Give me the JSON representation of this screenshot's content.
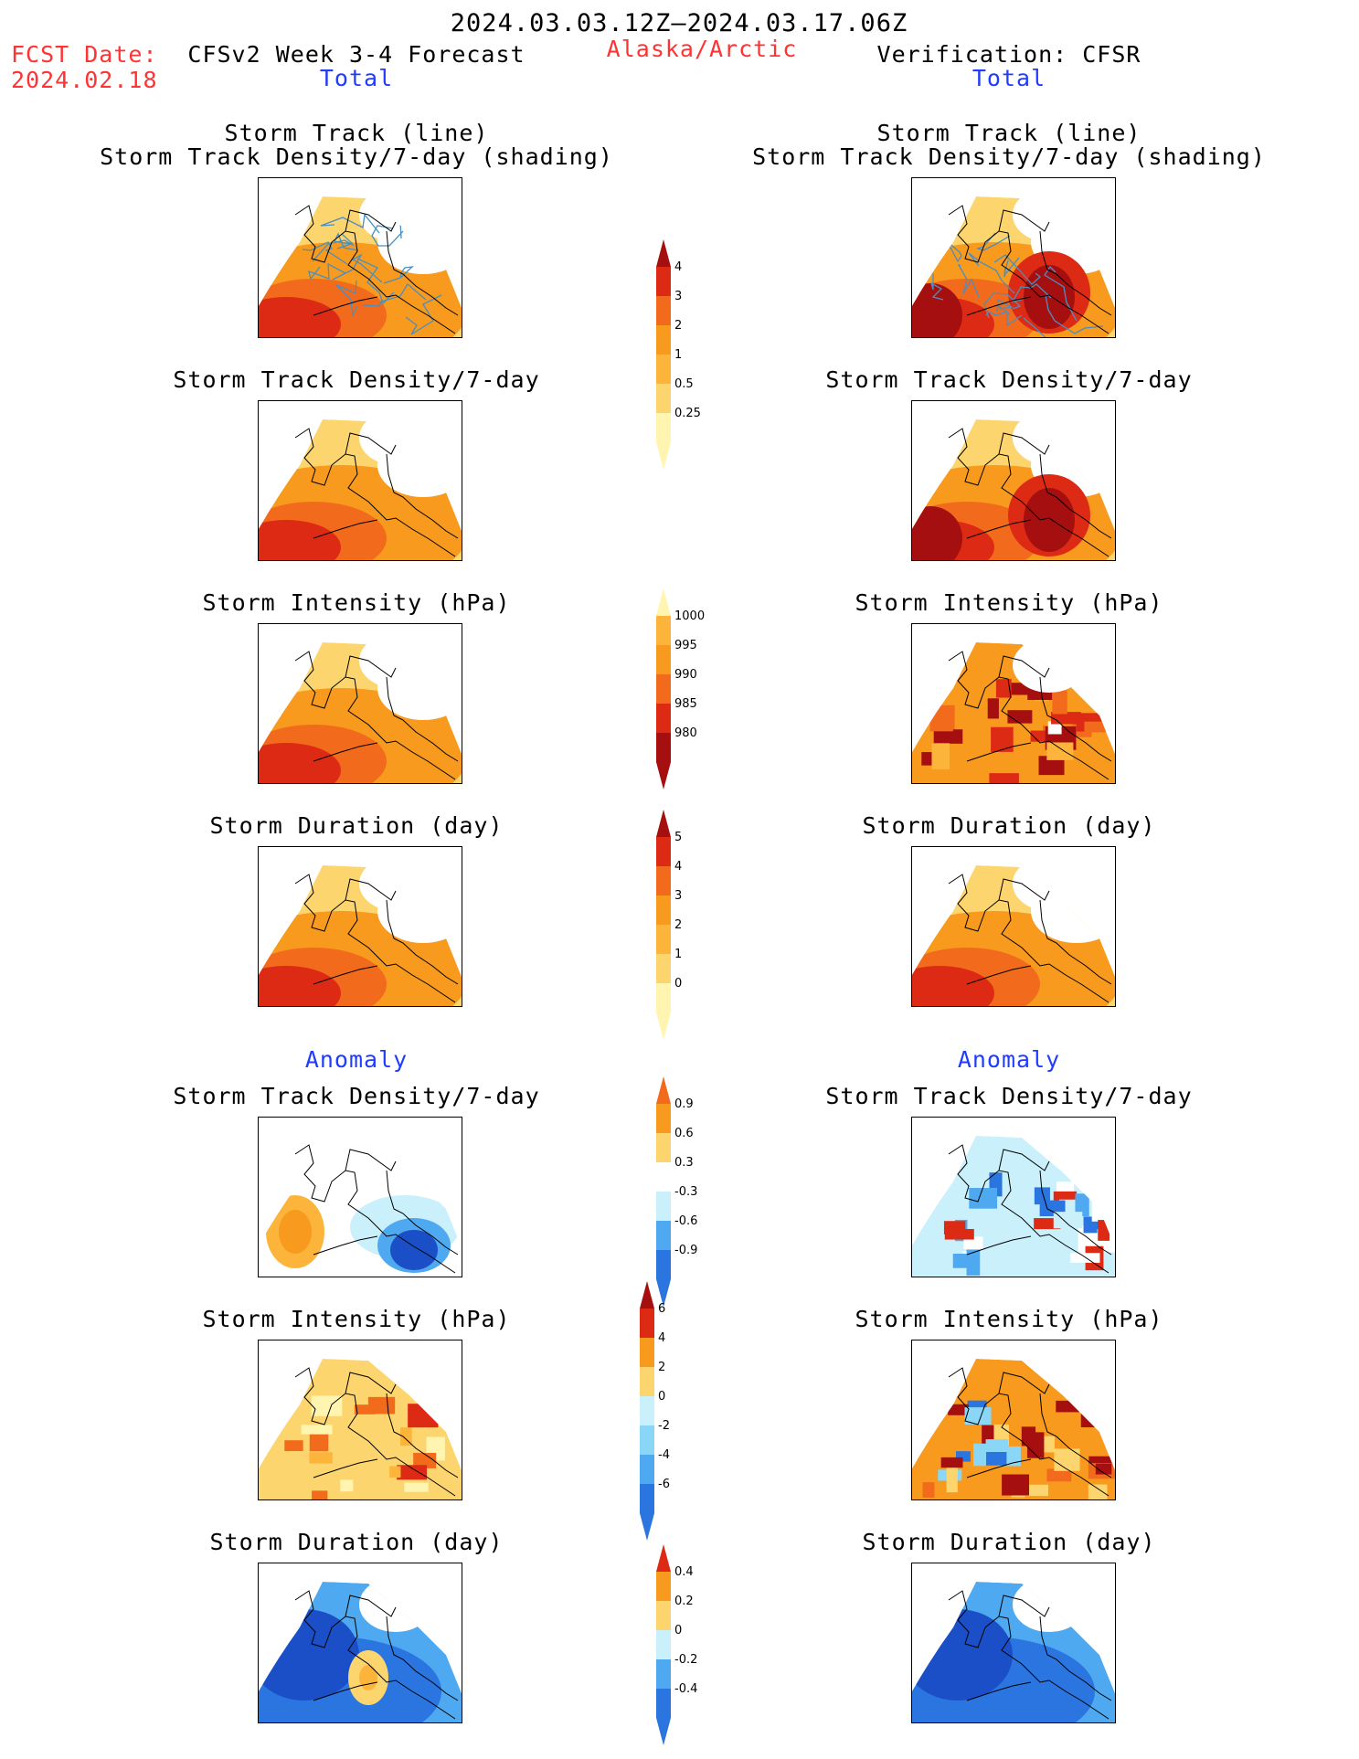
{
  "header": {
    "period": "2024.03.03.12Z—2024.03.17.06Z",
    "fcst_label": "FCST Date:",
    "fcst_date": "2024.02.18",
    "model": "CFSv2 Week 3-4 Forecast",
    "region": "Alaska/Arctic",
    "verification": "Verification: CFSR",
    "left_section": "Total",
    "right_section": "Total"
  },
  "titles": {
    "track_line": "Storm Track (line)",
    "track_shading": "Storm Track Density/7-day (shading)",
    "density": "Storm Track Density/7-day",
    "intensity": "Storm Intensity (hPa)",
    "duration": "Storm Duration (day)",
    "anomaly": "Anomaly"
  },
  "colorbars": {
    "density": [
      "4",
      "3",
      "2",
      "1",
      "0.5",
      "0.25"
    ],
    "intensity": [
      "1000",
      "995",
      "990",
      "985",
      "980"
    ],
    "duration": [
      "5",
      "4",
      "3",
      "2",
      "1",
      "0"
    ],
    "density_anom": [
      "0.9",
      "0.6",
      "0.3",
      "-0.3",
      "-0.6",
      "-0.9"
    ],
    "intensity_anom": [
      "6",
      "4",
      "2",
      "0",
      "-2",
      "-4",
      "-6"
    ],
    "duration_anom": [
      "0.4",
      "0.2",
      "0",
      "-0.2",
      "-0.4"
    ]
  },
  "colors": {
    "warm": [
      "#fff5b0",
      "#fdd56e",
      "#fcb43a",
      "#f79a1e",
      "#f26a1b",
      "#dd2a14",
      "#a50f0f"
    ],
    "cool": [
      "#ffffff",
      "#c9f0fb",
      "#8ad6f7",
      "#4ea9f0",
      "#2a75e0",
      "#1a4fc8"
    ],
    "track_line": "#4a8fc0",
    "header_red": "#ff3333",
    "header_blue": "#1f3cff"
  }
}
